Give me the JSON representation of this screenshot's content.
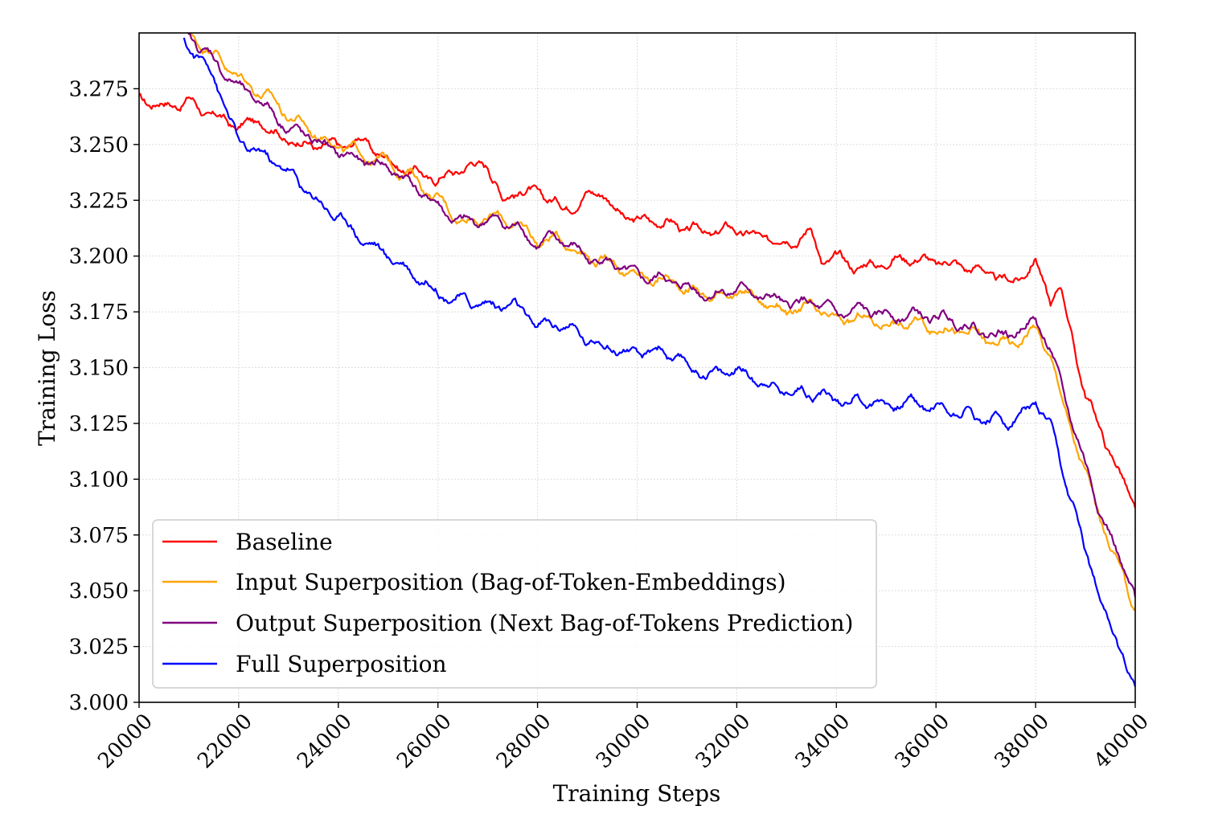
{
  "chart_data": {
    "type": "line",
    "xlabel": "Training Steps",
    "ylabel": "Training Loss",
    "xlim": [
      20000,
      40000
    ],
    "ylim": [
      3.0,
      3.3
    ],
    "x_ticks": [
      "20000",
      "22000",
      "24000",
      "26000",
      "28000",
      "30000",
      "32000",
      "34000",
      "36000",
      "38000",
      "40000"
    ],
    "y_ticks": [
      "3.000",
      "3.025",
      "3.050",
      "3.075",
      "3.100",
      "3.125",
      "3.150",
      "3.175",
      "3.200",
      "3.225",
      "3.250",
      "3.275"
    ],
    "grid": true,
    "legend_position": "lower-left",
    "series": [
      {
        "name": "Baseline",
        "color": "#ff0000",
        "points": [
          [
            20000,
            3.27
          ],
          [
            20500,
            3.268
          ],
          [
            21000,
            3.27
          ],
          [
            21500,
            3.262
          ],
          [
            22000,
            3.258
          ],
          [
            22500,
            3.26
          ],
          [
            23000,
            3.252
          ],
          [
            23500,
            3.25
          ],
          [
            24000,
            3.248
          ],
          [
            24500,
            3.252
          ],
          [
            25000,
            3.243
          ],
          [
            25500,
            3.238
          ],
          [
            26000,
            3.234
          ],
          [
            26500,
            3.24
          ],
          [
            27000,
            3.242
          ],
          [
            27300,
            3.225
          ],
          [
            27500,
            3.23
          ],
          [
            28000,
            3.228
          ],
          [
            28500,
            3.222
          ],
          [
            29000,
            3.228
          ],
          [
            29300,
            3.23
          ],
          [
            29500,
            3.222
          ],
          [
            30000,
            3.215
          ],
          [
            30500,
            3.216
          ],
          [
            31000,
            3.212
          ],
          [
            31500,
            3.21
          ],
          [
            32000,
            3.212
          ],
          [
            32500,
            3.207
          ],
          [
            33000,
            3.208
          ],
          [
            33500,
            3.212
          ],
          [
            33700,
            3.198
          ],
          [
            34000,
            3.198
          ],
          [
            34500,
            3.195
          ],
          [
            35000,
            3.198
          ],
          [
            35500,
            3.2
          ],
          [
            36000,
            3.197
          ],
          [
            36500,
            3.196
          ],
          [
            37000,
            3.193
          ],
          [
            37500,
            3.187
          ],
          [
            38000,
            3.198
          ],
          [
            38300,
            3.18
          ],
          [
            38500,
            3.186
          ],
          [
            39000,
            3.138
          ],
          [
            39500,
            3.112
          ],
          [
            40000,
            3.087
          ]
        ]
      },
      {
        "name": "Input Superposition (Bag-of-Token-Embeddings)",
        "color": "#ffa500",
        "points": [
          [
            20900,
            3.3
          ],
          [
            21500,
            3.292
          ],
          [
            22000,
            3.28
          ],
          [
            22500,
            3.273
          ],
          [
            23000,
            3.263
          ],
          [
            23500,
            3.256
          ],
          [
            24000,
            3.25
          ],
          [
            24500,
            3.245
          ],
          [
            25000,
            3.242
          ],
          [
            25500,
            3.236
          ],
          [
            26000,
            3.225
          ],
          [
            26500,
            3.216
          ],
          [
            27000,
            3.218
          ],
          [
            27500,
            3.215
          ],
          [
            28000,
            3.207
          ],
          [
            28500,
            3.208
          ],
          [
            29000,
            3.2
          ],
          [
            29500,
            3.198
          ],
          [
            30000,
            3.19
          ],
          [
            30500,
            3.19
          ],
          [
            31000,
            3.186
          ],
          [
            31500,
            3.182
          ],
          [
            32000,
            3.184
          ],
          [
            32500,
            3.18
          ],
          [
            33000,
            3.175
          ],
          [
            33500,
            3.176
          ],
          [
            34000,
            3.17
          ],
          [
            34500,
            3.172
          ],
          [
            35000,
            3.17
          ],
          [
            35500,
            3.17
          ],
          [
            36000,
            3.168
          ],
          [
            36500,
            3.167
          ],
          [
            37000,
            3.162
          ],
          [
            37500,
            3.16
          ],
          [
            38000,
            3.168
          ],
          [
            38300,
            3.155
          ],
          [
            38500,
            3.138
          ],
          [
            39000,
            3.102
          ],
          [
            39500,
            3.07
          ],
          [
            40000,
            3.042
          ]
        ]
      },
      {
        "name": "Output Superposition (Next Bag-of-Tokens Prediction)",
        "color": "#800080",
        "points": [
          [
            20900,
            3.3
          ],
          [
            21500,
            3.288
          ],
          [
            22000,
            3.275
          ],
          [
            22500,
            3.268
          ],
          [
            23000,
            3.258
          ],
          [
            23500,
            3.252
          ],
          [
            24000,
            3.246
          ],
          [
            24500,
            3.242
          ],
          [
            25000,
            3.24
          ],
          [
            25500,
            3.232
          ],
          [
            26000,
            3.222
          ],
          [
            26500,
            3.214
          ],
          [
            27000,
            3.216
          ],
          [
            27500,
            3.214
          ],
          [
            28000,
            3.206
          ],
          [
            28500,
            3.207
          ],
          [
            29000,
            3.199
          ],
          [
            29500,
            3.197
          ],
          [
            30000,
            3.189
          ],
          [
            30500,
            3.19
          ],
          [
            31000,
            3.186
          ],
          [
            31500,
            3.183
          ],
          [
            32000,
            3.186
          ],
          [
            32500,
            3.182
          ],
          [
            33000,
            3.178
          ],
          [
            33500,
            3.179
          ],
          [
            34000,
            3.173
          ],
          [
            34500,
            3.175
          ],
          [
            35000,
            3.173
          ],
          [
            35500,
            3.174
          ],
          [
            36000,
            3.172
          ],
          [
            36500,
            3.171
          ],
          [
            37000,
            3.166
          ],
          [
            37500,
            3.165
          ],
          [
            38000,
            3.172
          ],
          [
            38300,
            3.158
          ],
          [
            38500,
            3.142
          ],
          [
            39000,
            3.106
          ],
          [
            39500,
            3.074
          ],
          [
            40000,
            3.047
          ]
        ]
      },
      {
        "name": "Full Superposition",
        "color": "#0000ff",
        "points": [
          [
            20900,
            3.296
          ],
          [
            21500,
            3.282
          ],
          [
            22000,
            3.25
          ],
          [
            22500,
            3.245
          ],
          [
            23000,
            3.238
          ],
          [
            23500,
            3.226
          ],
          [
            24000,
            3.218
          ],
          [
            24500,
            3.208
          ],
          [
            25000,
            3.2
          ],
          [
            25500,
            3.193
          ],
          [
            26000,
            3.185
          ],
          [
            26500,
            3.18
          ],
          [
            27000,
            3.178
          ],
          [
            27500,
            3.178
          ],
          [
            28000,
            3.168
          ],
          [
            28500,
            3.17
          ],
          [
            29000,
            3.162
          ],
          [
            29500,
            3.16
          ],
          [
            30000,
            3.155
          ],
          [
            30500,
            3.158
          ],
          [
            31000,
            3.15
          ],
          [
            31500,
            3.147
          ],
          [
            32000,
            3.149
          ],
          [
            32500,
            3.144
          ],
          [
            33000,
            3.14
          ],
          [
            33500,
            3.14
          ],
          [
            34000,
            3.135
          ],
          [
            34500,
            3.136
          ],
          [
            35000,
            3.134
          ],
          [
            35500,
            3.135
          ],
          [
            36000,
            3.132
          ],
          [
            36500,
            3.131
          ],
          [
            37000,
            3.127
          ],
          [
            37500,
            3.126
          ],
          [
            38000,
            3.134
          ],
          [
            38300,
            3.122
          ],
          [
            38500,
            3.105
          ],
          [
            39000,
            3.068
          ],
          [
            39500,
            3.035
          ],
          [
            40000,
            3.007
          ]
        ]
      }
    ]
  }
}
